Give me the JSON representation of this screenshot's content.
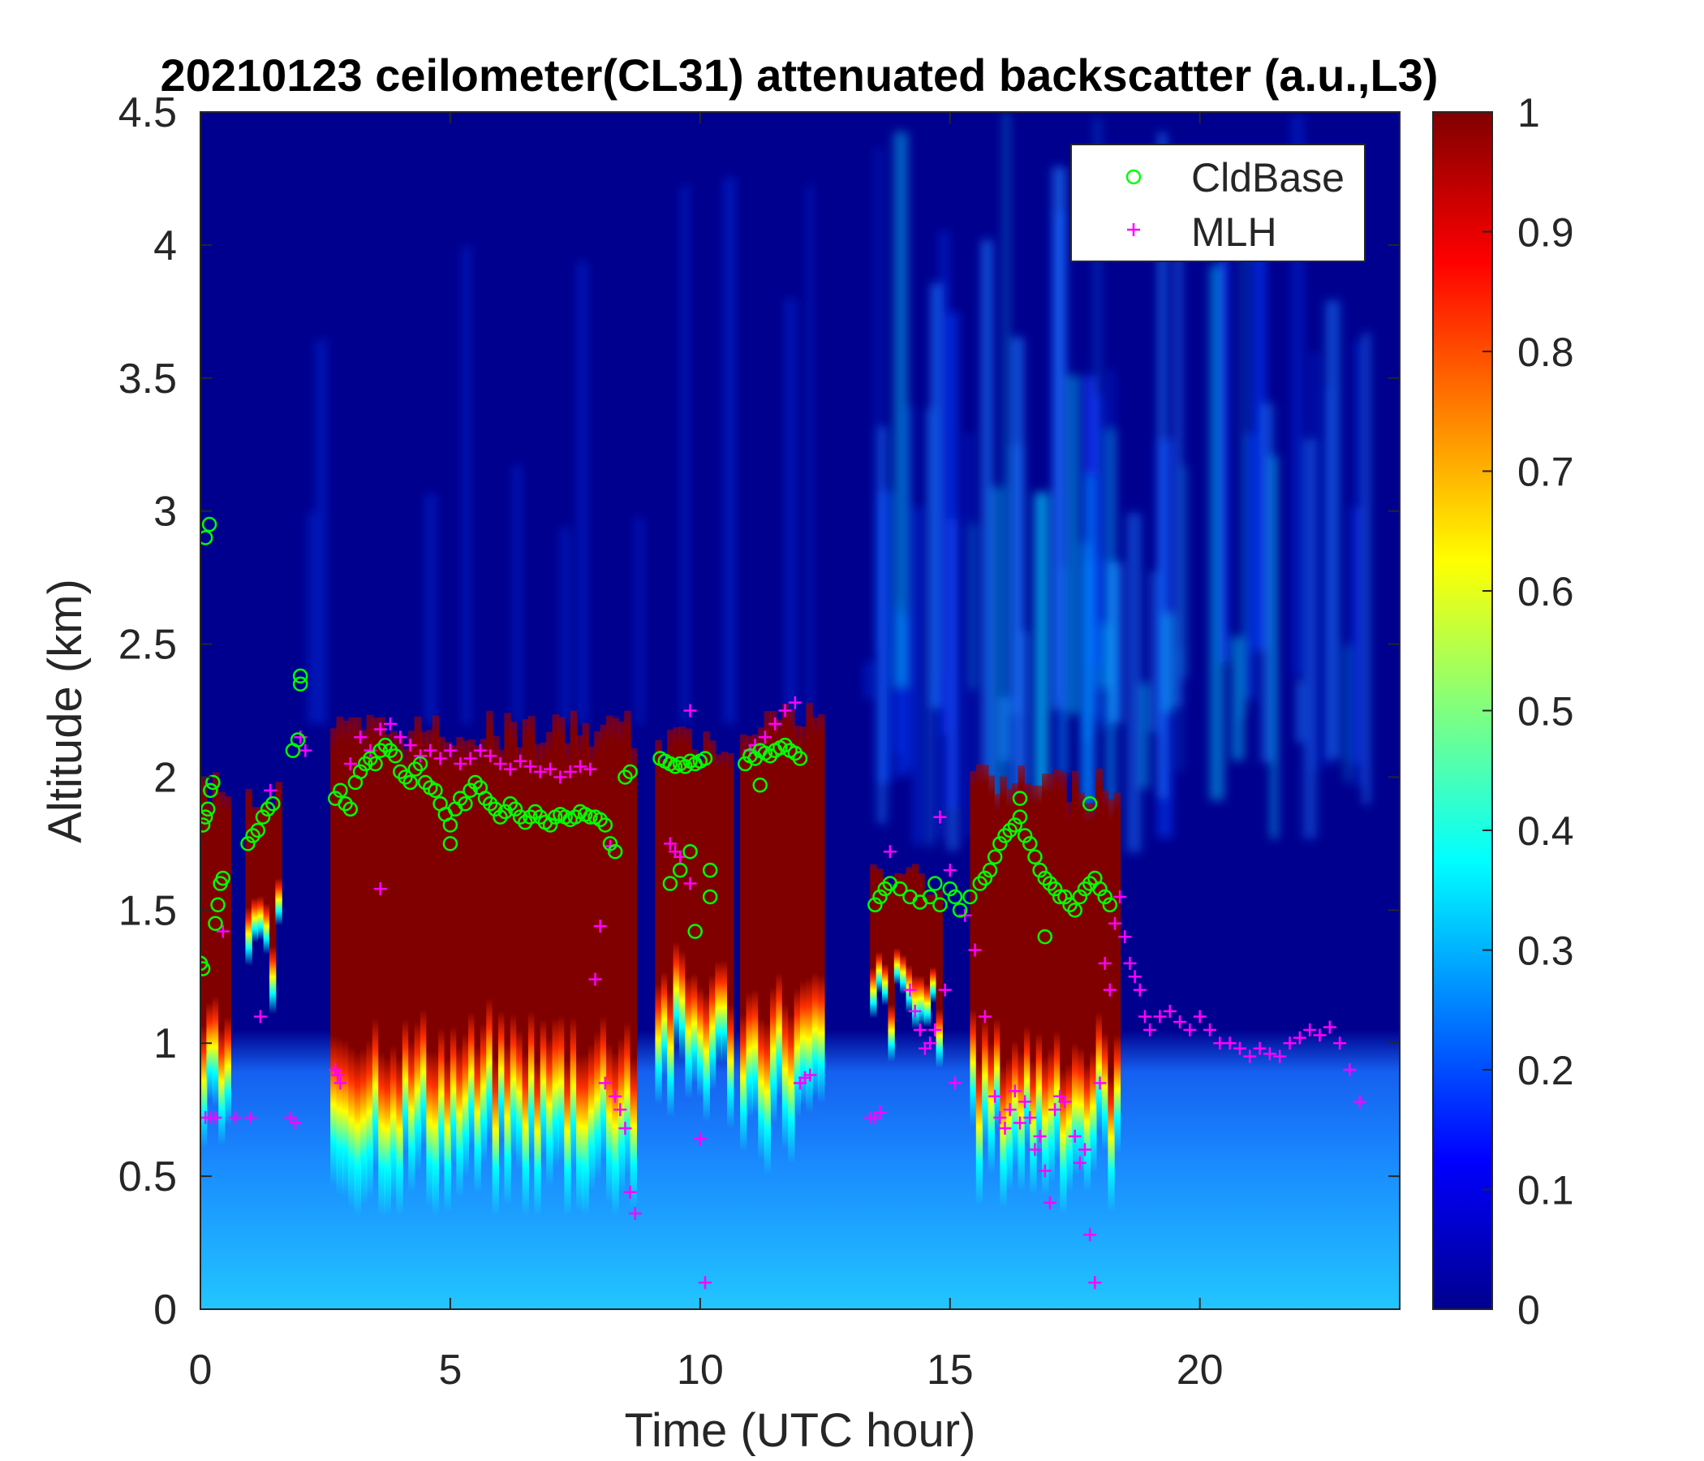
{
  "chart_data": {
    "type": "heatmap",
    "title": "20210123 ceilometer(CL31) attenuated backscatter (a.u.,L3)",
    "xlabel": "Time (UTC hour)",
    "ylabel": "Altitude (km)",
    "xlim": [
      0,
      24
    ],
    "ylim": [
      0,
      4.5
    ],
    "xticks": [
      "0",
      "5",
      "10",
      "15",
      "20"
    ],
    "yticks": [
      "0",
      "0.5",
      "1",
      "1.5",
      "2",
      "2.5",
      "3",
      "3.5",
      "4",
      "4.5"
    ],
    "colorbar": {
      "colormap": "jet",
      "range": [
        0,
        1
      ],
      "ticks": [
        "0",
        "0.1",
        "0.2",
        "0.3",
        "0.4",
        "0.5",
        "0.6",
        "0.7",
        "0.8",
        "0.9",
        "1"
      ]
    },
    "legend": {
      "position": "top-right",
      "entries": [
        {
          "label": "CldBase",
          "marker": "circle",
          "color": "#00ff00"
        },
        {
          "label": "MLH",
          "marker": "plus",
          "color": "#ff00ff"
        }
      ]
    },
    "colors": {
      "background_low": "#00008f",
      "cloud_core": "#800000",
      "cldbase": "#00ff00",
      "mlh": "#ff00ff"
    },
    "cloud_layers": [
      {
        "start": 0.0,
        "end": 0.55,
        "base": 0.95,
        "top": 2.05
      },
      {
        "start": 0.9,
        "end": 1.6,
        "base": 1.55,
        "top": 2.0
      },
      {
        "start": 2.6,
        "end": 8.7,
        "base": 0.75,
        "top": 2.25
      },
      {
        "start": 9.1,
        "end": 10.6,
        "base": 1.1,
        "top": 2.2
      },
      {
        "start": 10.8,
        "end": 12.4,
        "base": 0.95,
        "top": 2.3
      },
      {
        "start": 13.4,
        "end": 14.8,
        "base": 1.35,
        "top": 1.7
      },
      {
        "start": 15.4,
        "end": 18.4,
        "base": 0.8,
        "top": 2.05
      }
    ],
    "series": [
      {
        "name": "CldBase",
        "x": [
          0.0,
          0.05,
          0.1,
          0.15,
          0.2,
          0.25,
          0.3,
          0.35,
          0.4,
          0.45,
          0.1,
          0.18,
          0.0,
          0.05,
          0.95,
          1.05,
          1.15,
          1.25,
          1.35,
          1.45,
          1.85,
          1.95,
          2.0,
          2.0,
          2.7,
          2.8,
          2.9,
          3.0,
          3.1,
          3.2,
          3.3,
          3.4,
          3.5,
          3.6,
          3.7,
          3.8,
          3.9,
          4.0,
          4.1,
          4.2,
          4.3,
          4.4,
          4.5,
          4.6,
          4.7,
          4.8,
          4.9,
          5.0,
          5.1,
          5.2,
          5.3,
          5.4,
          5.5,
          5.6,
          5.7,
          5.8,
          5.9,
          6.0,
          6.1,
          6.2,
          6.3,
          6.4,
          6.5,
          6.6,
          6.7,
          6.8,
          6.9,
          7.0,
          7.1,
          7.2,
          7.3,
          7.4,
          7.5,
          7.6,
          7.7,
          7.8,
          7.9,
          8.0,
          8.1,
          8.2,
          8.3,
          8.5,
          8.6,
          5.0,
          9.2,
          9.3,
          9.4,
          9.5,
          9.6,
          9.7,
          9.8,
          9.9,
          10.0,
          10.1,
          10.2,
          9.4,
          9.6,
          9.8,
          10.2,
          9.9,
          10.9,
          11.0,
          11.1,
          11.2,
          11.3,
          11.4,
          11.5,
          11.6,
          11.7,
          11.8,
          11.9,
          12.0,
          11.2,
          13.5,
          13.6,
          13.7,
          13.8,
          14.0,
          14.2,
          14.4,
          14.6,
          14.7,
          14.8,
          15.0,
          15.1,
          15.2,
          15.4,
          15.6,
          15.7,
          15.8,
          15.9,
          16.0,
          16.1,
          16.2,
          16.3,
          16.4,
          16.5,
          16.6,
          16.7,
          16.8,
          16.9,
          17.0,
          17.1,
          17.2,
          17.3,
          17.4,
          17.5,
          17.6,
          17.7,
          17.8,
          17.9,
          18.0,
          18.1,
          18.2,
          16.9,
          16.4,
          17.8
        ],
        "y": [
          1.3,
          1.82,
          1.85,
          1.88,
          1.95,
          1.98,
          1.45,
          1.52,
          1.6,
          1.62,
          2.9,
          2.95,
          1.3,
          1.28,
          1.75,
          1.78,
          1.8,
          1.85,
          1.88,
          1.9,
          2.1,
          2.14,
          2.35,
          2.38,
          1.92,
          1.95,
          1.9,
          1.88,
          1.98,
          2.02,
          2.05,
          2.07,
          2.05,
          2.1,
          2.12,
          2.1,
          2.08,
          2.02,
          2.0,
          1.98,
          2.03,
          2.05,
          1.98,
          1.96,
          1.95,
          1.9,
          1.86,
          1.82,
          1.88,
          1.92,
          1.9,
          1.95,
          1.98,
          1.96,
          1.92,
          1.9,
          1.88,
          1.85,
          1.87,
          1.9,
          1.88,
          1.85,
          1.83,
          1.85,
          1.87,
          1.85,
          1.83,
          1.82,
          1.85,
          1.86,
          1.85,
          1.84,
          1.85,
          1.87,
          1.86,
          1.85,
          1.85,
          1.84,
          1.82,
          1.75,
          1.72,
          2.0,
          2.02,
          1.75,
          2.07,
          2.06,
          2.05,
          2.04,
          2.05,
          2.04,
          2.06,
          2.05,
          2.06,
          2.07,
          1.65,
          1.6,
          1.65,
          1.72,
          1.55,
          1.42,
          2.05,
          2.08,
          2.07,
          2.1,
          2.09,
          2.08,
          2.1,
          2.11,
          2.12,
          2.1,
          2.09,
          2.07,
          1.97,
          1.52,
          1.55,
          1.58,
          1.6,
          1.58,
          1.55,
          1.53,
          1.55,
          1.6,
          1.52,
          1.58,
          1.55,
          1.5,
          1.55,
          1.6,
          1.62,
          1.65,
          1.7,
          1.75,
          1.78,
          1.8,
          1.82,
          1.85,
          1.78,
          1.75,
          1.7,
          1.65,
          1.62,
          1.6,
          1.58,
          1.55,
          1.55,
          1.52,
          1.5,
          1.55,
          1.58,
          1.6,
          1.62,
          1.58,
          1.55,
          1.52,
          1.4,
          1.92,
          1.9
        ]
      },
      {
        "name": "MLH",
        "x": [
          0.1,
          0.2,
          0.3,
          0.45,
          0.7,
          1.0,
          1.2,
          1.4,
          1.8,
          1.9,
          2.0,
          2.1,
          2.7,
          2.75,
          2.8,
          3.0,
          3.2,
          3.4,
          3.6,
          3.8,
          4.0,
          4.2,
          4.4,
          4.6,
          4.8,
          5.0,
          5.2,
          5.4,
          5.6,
          5.8,
          6.0,
          6.2,
          6.4,
          6.6,
          6.8,
          7.0,
          7.2,
          7.4,
          7.6,
          7.8,
          8.0,
          3.6,
          7.9,
          8.1,
          8.2,
          8.3,
          8.4,
          8.5,
          8.6,
          8.7,
          9.4,
          9.5,
          9.6,
          9.8,
          10.0,
          10.1,
          9.8,
          11.0,
          11.1,
          11.3,
          11.5,
          11.7,
          11.9,
          12.0,
          12.1,
          12.2,
          13.4,
          13.5,
          13.6,
          13.8,
          14.2,
          14.3,
          14.4,
          14.5,
          14.6,
          14.7,
          14.8,
          14.9,
          15.0,
          15.1,
          15.3,
          15.5,
          15.7,
          15.9,
          16.0,
          16.1,
          16.2,
          16.3,
          16.4,
          16.5,
          16.6,
          16.7,
          16.8,
          16.9,
          17.0,
          17.1,
          17.2,
          17.3,
          17.5,
          17.6,
          17.7,
          17.8,
          17.9,
          18.0,
          18.1,
          18.2,
          18.3,
          18.4,
          18.5,
          18.6,
          18.7,
          18.8,
          18.9,
          19.0,
          19.2,
          19.4,
          19.6,
          19.8,
          20.0,
          20.2,
          20.4,
          20.6,
          20.8,
          21.0,
          21.2,
          21.4,
          21.6,
          21.8,
          22.0,
          22.2,
          22.4,
          22.6,
          22.8,
          23.0,
          23.2
        ],
        "y": [
          0.72,
          0.72,
          0.72,
          1.42,
          0.72,
          0.72,
          1.1,
          1.95,
          0.72,
          0.7,
          2.15,
          2.1,
          0.9,
          0.88,
          0.85,
          2.05,
          2.15,
          2.1,
          2.18,
          2.2,
          2.15,
          2.12,
          2.08,
          2.1,
          2.07,
          2.1,
          2.05,
          2.07,
          2.1,
          2.08,
          2.05,
          2.03,
          2.06,
          2.04,
          2.02,
          2.03,
          2.0,
          2.02,
          2.04,
          2.03,
          1.44,
          1.58,
          1.24,
          0.85,
          1.74,
          0.8,
          0.75,
          0.68,
          0.44,
          0.36,
          1.75,
          1.72,
          1.7,
          2.25,
          0.64,
          0.1,
          1.6,
          2.1,
          2.12,
          2.15,
          2.2,
          2.25,
          2.28,
          0.85,
          0.87,
          0.88,
          0.72,
          0.72,
          0.74,
          1.72,
          1.2,
          1.12,
          1.05,
          0.98,
          1.0,
          1.05,
          1.85,
          1.2,
          1.65,
          0.85,
          1.48,
          1.35,
          1.1,
          0.8,
          0.72,
          0.68,
          0.75,
          0.82,
          0.7,
          0.78,
          0.72,
          0.6,
          0.65,
          0.52,
          0.4,
          0.75,
          0.8,
          0.78,
          0.65,
          0.55,
          0.6,
          0.28,
          0.1,
          0.85,
          1.3,
          1.2,
          1.45,
          1.55,
          1.4,
          1.3,
          1.25,
          1.2,
          1.1,
          1.05,
          1.1,
          1.12,
          1.08,
          1.05,
          1.1,
          1.05,
          1.0,
          1.0,
          0.98,
          0.95,
          0.98,
          0.96,
          0.95,
          1.0,
          1.02,
          1.05,
          1.03,
          1.06,
          1.0,
          0.9,
          0.78
        ]
      }
    ]
  }
}
